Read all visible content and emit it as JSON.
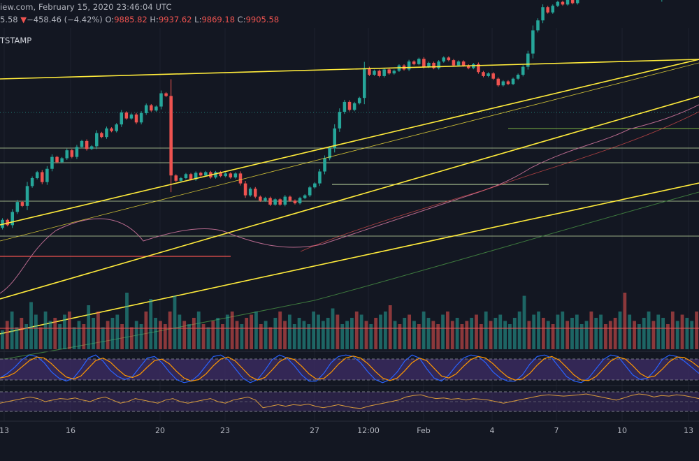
{
  "header": {
    "source_line": "iew.com, February 15, 2020 23:46:04 UTC",
    "last_fragment": "5.58",
    "change_arrow": "▼",
    "change": "−458.46 (−4.42%)",
    "o_label": "O:",
    "o_value": "9885.82",
    "h_label": "H:",
    "h_value": "9937.62",
    "l_label": "L:",
    "l_value": "9869.18",
    "c_label": "C:",
    "c_value": "9905.58",
    "symbol_fragment": "TSTAMP"
  },
  "colors": {
    "background": "#131722",
    "up": "#26a69a",
    "down": "#ef5350",
    "trendline": "#ffeb3b",
    "horizontal_level": "#c5e1a5",
    "red_level": "#ef5350",
    "ma_short": "#b86a8e",
    "ma_long": "#3e7a3e",
    "stoch_k": "#2962ff",
    "stoch_d": "#ff9800",
    "indicator_band": "#3a2a5e",
    "rsi_line": "#d89b3c"
  },
  "chart_data": {
    "type": "candlestick",
    "x_ticks": [
      "13",
      "16",
      "20",
      "23",
      "27",
      "12:00",
      "Feb",
      "4",
      "7",
      "10",
      "13"
    ],
    "price_range": [
      6700,
      10600
    ],
    "candles": {
      "start_price": 7900,
      "deltas": [
        120,
        -80,
        200,
        150,
        -60,
        300,
        120,
        90,
        -150,
        200,
        180,
        -80,
        60,
        120,
        -100,
        150,
        90,
        -120,
        40,
        200,
        -60,
        130,
        -40,
        100,
        180,
        -90,
        60,
        -120,
        140,
        120,
        -80,
        60,
        200,
        -40,
        -1200,
        -80,
        40,
        60,
        -80,
        100,
        -40,
        50,
        -80,
        80,
        -60,
        40,
        -60,
        60,
        -150,
        -180,
        100,
        -120,
        -60,
        40,
        -100,
        80,
        -80,
        120,
        -60,
        -40,
        80,
        40,
        120,
        60,
        180,
        200,
        150,
        300,
        250,
        150,
        -120,
        100,
        80,
        450,
        -100,
        60,
        -80,
        100,
        -60,
        40,
        80,
        -60,
        120,
        -40,
        80,
        -120,
        60,
        -80,
        100,
        60,
        -40,
        -80,
        60,
        -60,
        -40,
        60,
        -120,
        -60,
        40,
        -80,
        -100,
        60,
        -40,
        80,
        60,
        120,
        200,
        350,
        150,
        200,
        -80,
        100,
        60,
        -40,
        80,
        -60,
        100,
        60,
        -80,
        80,
        150,
        200,
        180,
        -100,
        150,
        60,
        -200,
        -250,
        -100,
        120,
        -200,
        80,
        -60,
        800,
        300,
        150,
        -100,
        100,
        80,
        -60,
        -300
      ]
    },
    "volume": {
      "levels": [
        30,
        45,
        60,
        35,
        50,
        40,
        75,
        55,
        35,
        60,
        45,
        50,
        40,
        55,
        60,
        35,
        45,
        40,
        70,
        50,
        60,
        35,
        45,
        50,
        55,
        40,
        90,
        35,
        45,
        40,
        60,
        80,
        50,
        45,
        40,
        60,
        85,
        55,
        45,
        40,
        50,
        60,
        40,
        35,
        45,
        50,
        40,
        55,
        60,
        45,
        40,
        50,
        55,
        60,
        40,
        45,
        35,
        50,
        60,
        45,
        55,
        40,
        50,
        45,
        40,
        60,
        55,
        45,
        50,
        65,
        55,
        40,
        45,
        50,
        60,
        55,
        45,
        40,
        50,
        55,
        60,
        70,
        45,
        40,
        50,
        55,
        45,
        40,
        60,
        50,
        45,
        40,
        55,
        60,
        45,
        50,
        40,
        45,
        50,
        55,
        40,
        60,
        45,
        50,
        55,
        45,
        40,
        50,
        60,
        85,
        45,
        55,
        60,
        50,
        45,
        40,
        55,
        60,
        45,
        50,
        55,
        40,
        45,
        60,
        50,
        55,
        40,
        45,
        50,
        60,
        90,
        55,
        45,
        40,
        50,
        60,
        45,
        55,
        50,
        40,
        60,
        45,
        55,
        50,
        45,
        60
      ]
    },
    "volume_red_level": 0.3,
    "stochastic": {
      "k": [
        0.2,
        0.35,
        0.55,
        0.8,
        0.95,
        0.9,
        0.7,
        0.4,
        0.2,
        0.1,
        0.2,
        0.5,
        0.85,
        0.95,
        0.75,
        0.45,
        0.25,
        0.15,
        0.25,
        0.55,
        0.85,
        0.9,
        0.7,
        0.4,
        0.15,
        0.05,
        0.1,
        0.3,
        0.6,
        0.9,
        0.95,
        0.8,
        0.5,
        0.2,
        0.05,
        0.15,
        0.45,
        0.8,
        0.95,
        0.85,
        0.6,
        0.3,
        0.1,
        0.1,
        0.35,
        0.7,
        0.9,
        0.95,
        0.9,
        0.7,
        0.4,
        0.15,
        0.05,
        0.15,
        0.4,
        0.75,
        0.95,
        0.85,
        0.5,
        0.2,
        0.1,
        0.3,
        0.6,
        0.85,
        0.95,
        0.9,
        0.7,
        0.4,
        0.2,
        0.1,
        0.1,
        0.3,
        0.65,
        0.9,
        0.95,
        0.85,
        0.55,
        0.25,
        0.1,
        0.05,
        0.2,
        0.5,
        0.8,
        0.95,
        0.9,
        0.6,
        0.3,
        0.15,
        0.2,
        0.45,
        0.8,
        0.95,
        0.9,
        0.75,
        0.55,
        0.35
      ]
    },
    "rsi": {
      "values": [
        0.45,
        0.5,
        0.55,
        0.6,
        0.65,
        0.6,
        0.5,
        0.55,
        0.6,
        0.58,
        0.62,
        0.55,
        0.5,
        0.6,
        0.65,
        0.55,
        0.45,
        0.5,
        0.6,
        0.55,
        0.5,
        0.45,
        0.55,
        0.6,
        0.5,
        0.45,
        0.5,
        0.55,
        0.6,
        0.5,
        0.45,
        0.55,
        0.6,
        0.65,
        0.55,
        0.3,
        0.35,
        0.4,
        0.35,
        0.4,
        0.38,
        0.42,
        0.35,
        0.3,
        0.35,
        0.4,
        0.35,
        0.3,
        0.28,
        0.35,
        0.4,
        0.45,
        0.5,
        0.55,
        0.65,
        0.7,
        0.72,
        0.65,
        0.6,
        0.62,
        0.58,
        0.6,
        0.55,
        0.6,
        0.58,
        0.55,
        0.5,
        0.45,
        0.5,
        0.55,
        0.6,
        0.65,
        0.7,
        0.72,
        0.7,
        0.68,
        0.7,
        0.72,
        0.75,
        0.7,
        0.65,
        0.6,
        0.55,
        0.62,
        0.7,
        0.75,
        0.72,
        0.65,
        0.7,
        0.68,
        0.72,
        0.7,
        0.65,
        0.6
      ]
    }
  }
}
